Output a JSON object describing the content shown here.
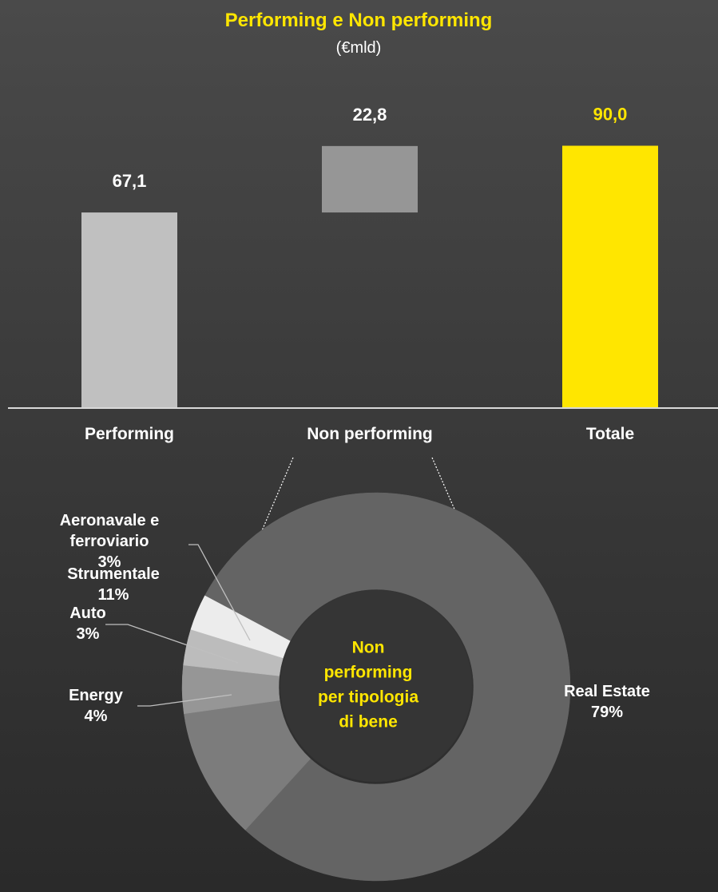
{
  "chart_data": [
    {
      "type": "bar",
      "subtype": "waterfall",
      "title": "Performing e Non performing",
      "subtitle": "(€mld)",
      "categories": [
        "Performing",
        "Non performing",
        "Totale"
      ],
      "values": [
        67.1,
        22.8,
        90.0
      ],
      "value_labels": [
        "67,1",
        "22,8",
        "90,0"
      ],
      "ylim": [
        0,
        100
      ],
      "grid": false,
      "colors": [
        "#c0c0c0",
        "#969696",
        "#ffe600"
      ]
    },
    {
      "type": "pie",
      "variant": "donut",
      "center_label": [
        "Non",
        "performing",
        "per tipologia",
        "di bene"
      ],
      "slices": [
        {
          "label": [
            "Real Estate"
          ],
          "value": 79,
          "pct": "79%",
          "color": "#646464"
        },
        {
          "label": [
            "Strumentale"
          ],
          "value": 11,
          "pct": "11%",
          "color": "#7c7c7c"
        },
        {
          "label": [
            "Energy"
          ],
          "value": 4,
          "pct": "4%",
          "color": "#969696"
        },
        {
          "label": [
            "Auto"
          ],
          "value": 3,
          "pct": "3%",
          "color": "#bcbcbc"
        },
        {
          "label": [
            "Aeronavale e",
            "ferroviario"
          ],
          "value": 3,
          "pct": "3%",
          "color": "#ececec"
        }
      ]
    }
  ],
  "colors": {
    "accent": "#ffe600",
    "text": "#ffffff"
  }
}
